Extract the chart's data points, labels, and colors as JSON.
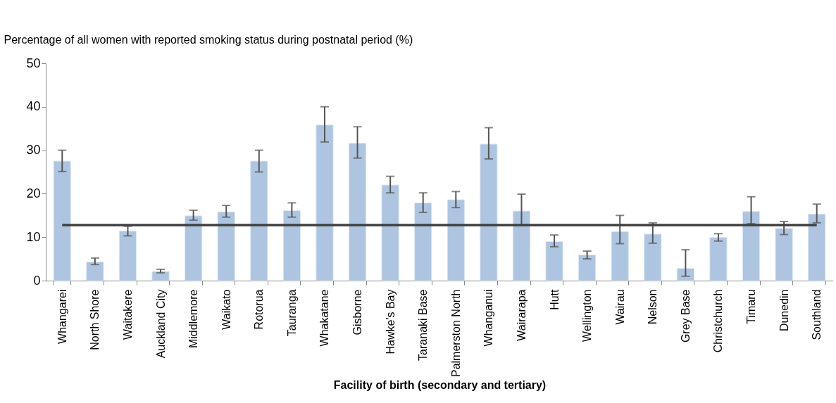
{
  "chart_data": {
    "type": "bar",
    "xlabel": "Facility of birth (secondary and tertiary)",
    "ylabel": "Percentage of all women with reported smoking status during postnatal period (%)",
    "categories": [
      "Whangarei",
      "North Shore",
      "Waitakere",
      "Auckland City",
      "Middlemore",
      "Waikato",
      "Rotorua",
      "Tauranga",
      "Whakatane",
      "Gisborne",
      "Hawke's Bay",
      "Taranaki Base",
      "Palmerston North",
      "Whanganui",
      "Wairarapa",
      "Hutt",
      "Wellington",
      "Wairau",
      "Nelson",
      "Grey Base",
      "Christchurch",
      "Timaru",
      "Dunedin",
      "Southland"
    ],
    "series": [
      {
        "color": "#adc5e0",
        "values": [
          27.5,
          4.3,
          11.4,
          2.1,
          14.9,
          15.8,
          27.5,
          16.1,
          35.8,
          31.6,
          22.0,
          17.9,
          18.6,
          31.4,
          16.0,
          9.0,
          5.9,
          11.3,
          10.7,
          2.8,
          9.9,
          15.9,
          12.0,
          15.3
        ],
        "errors": [
          [
            25.1,
            30.0
          ],
          [
            3.7,
            5.2
          ],
          [
            10.3,
            12.5
          ],
          [
            1.8,
            2.6
          ],
          [
            13.9,
            16.2
          ],
          [
            14.6,
            17.3
          ],
          [
            25.0,
            30.0
          ],
          [
            14.6,
            17.9
          ],
          [
            31.9,
            40.0
          ],
          [
            28.2,
            35.4
          ],
          [
            20.2,
            24.0
          ],
          [
            15.7,
            20.2
          ],
          [
            16.8,
            20.5
          ],
          [
            28.0,
            35.2
          ],
          [
            12.8,
            19.9
          ],
          [
            7.8,
            10.5
          ],
          [
            5.0,
            6.8
          ],
          [
            8.5,
            15.0
          ],
          [
            8.6,
            13.3
          ],
          [
            1.0,
            7.1
          ],
          [
            9.1,
            10.8
          ],
          [
            13.1,
            19.3
          ],
          [
            10.6,
            13.6
          ],
          [
            13.3,
            17.6
          ]
        ]
      }
    ],
    "ref_lines": [
      {
        "axis": "y",
        "value": 12.8,
        "color": "#404040"
      }
    ],
    "ylim": [
      0,
      50
    ],
    "yticks": [
      0,
      10,
      20,
      30,
      40,
      50
    ]
  }
}
